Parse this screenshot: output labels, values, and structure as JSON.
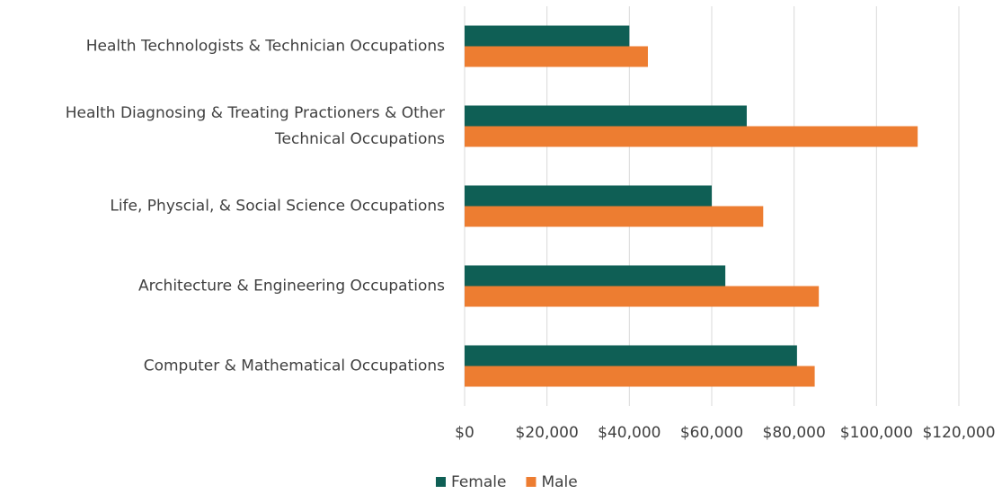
{
  "chart_data": {
    "type": "barh",
    "categories": [
      "Health Technologists & Technician Occupations",
      "Health Diagnosing & Treating Practioners & Other Technical Occupations",
      "Life, Physcial, & Social Science Occupations",
      "Architecture & Engineering Occupations",
      "Computer & Mathematical Occupations"
    ],
    "series": [
      {
        "name": "Female",
        "color": "#0f5f55",
        "values": [
          40000,
          68500,
          60000,
          63300,
          80700
        ]
      },
      {
        "name": "Male",
        "color": "#ed7d31",
        "values": [
          44500,
          110000,
          72500,
          86000,
          85000
        ]
      }
    ],
    "xlim": [
      0,
      120000
    ],
    "xticks": [
      {
        "value": 0,
        "label": "$0"
      },
      {
        "value": 20000,
        "label": "$20,000"
      },
      {
        "value": 40000,
        "label": "$40,000"
      },
      {
        "value": 60000,
        "label": "$60,000"
      },
      {
        "value": 80000,
        "label": "$80,000"
      },
      {
        "value": 100000,
        "label": "$100,000"
      },
      {
        "value": 120000,
        "label": "$120,000"
      }
    ],
    "grid": true,
    "legend": "bottom"
  }
}
